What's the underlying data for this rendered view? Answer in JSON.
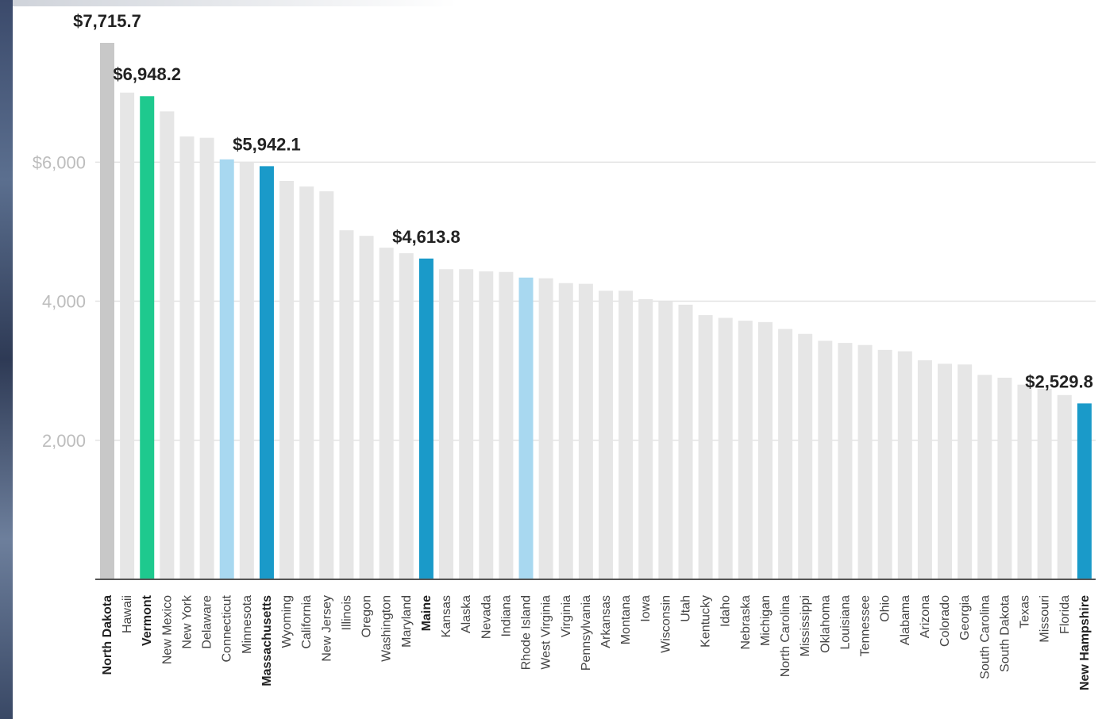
{
  "chart_data": {
    "type": "bar",
    "title": "",
    "xlabel": "",
    "ylabel": "",
    "ylim": [
      0,
      7715.7
    ],
    "y_ticks": [
      {
        "value": 2000,
        "label": "2,000"
      },
      {
        "value": 4000,
        "label": "4,000"
      },
      {
        "value": 6000,
        "label": "$6,000"
      }
    ],
    "grid": true,
    "categories": [
      "North Dakota",
      "Hawaii",
      "Vermont",
      "New Mexico",
      "New York",
      "Delaware",
      "Connecticut",
      "Minnesota",
      "Massachusetts",
      "Wyoming",
      "California",
      "New Jersey",
      "Illinois",
      "Oregon",
      "Washington",
      "Maryland",
      "Maine",
      "Kansas",
      "Alaska",
      "Nevada",
      "Indiana",
      "Rhode Island",
      "West Virginia",
      "Virginia",
      "Pennsylvania",
      "Arkansas",
      "Montana",
      "Iowa",
      "Wisconsin",
      "Utah",
      "Kentucky",
      "Idaho",
      "Nebraska",
      "Michigan",
      "North Carolina",
      "Mississippi",
      "Oklahoma",
      "Louisiana",
      "Tennessee",
      "Ohio",
      "Alabama",
      "Arizona",
      "Colorado",
      "Georgia",
      "South Carolina",
      "South Dakota",
      "Texas",
      "Missouri",
      "Florida",
      "New Hampshire"
    ],
    "values": [
      7715.7,
      7000,
      6948.2,
      6730,
      6370,
      6350,
      6040,
      6000,
      5942.1,
      5730,
      5650,
      5580,
      5020,
      4940,
      4770,
      4690,
      4613.8,
      4460,
      4460,
      4430,
      4420,
      4340,
      4330,
      4260,
      4250,
      4150,
      4150,
      4030,
      4000,
      3950,
      3800,
      3760,
      3720,
      3700,
      3600,
      3530,
      3430,
      3400,
      3370,
      3300,
      3280,
      3150,
      3100,
      3090,
      2940,
      2900,
      2800,
      2740,
      2650,
      2529.8
    ],
    "bar_colors": [
      "#c8c8c8",
      "#e6e6e6",
      "#1ec98e",
      "#e6e6e6",
      "#e6e6e6",
      "#e6e6e6",
      "#a8d8f0",
      "#e6e6e6",
      "#1a9ac9",
      "#e6e6e6",
      "#e6e6e6",
      "#e6e6e6",
      "#e6e6e6",
      "#e6e6e6",
      "#e6e6e6",
      "#e6e6e6",
      "#1a9ac9",
      "#e6e6e6",
      "#e6e6e6",
      "#e6e6e6",
      "#e6e6e6",
      "#a8d8f0",
      "#e6e6e6",
      "#e6e6e6",
      "#e6e6e6",
      "#e6e6e6",
      "#e6e6e6",
      "#e6e6e6",
      "#e6e6e6",
      "#e6e6e6",
      "#e6e6e6",
      "#e6e6e6",
      "#e6e6e6",
      "#e6e6e6",
      "#e6e6e6",
      "#e6e6e6",
      "#e6e6e6",
      "#e6e6e6",
      "#e6e6e6",
      "#e6e6e6",
      "#e6e6e6",
      "#e6e6e6",
      "#e6e6e6",
      "#e6e6e6",
      "#e6e6e6",
      "#e6e6e6",
      "#e6e6e6",
      "#e6e6e6",
      "#e6e6e6",
      "#1a9ac9"
    ],
    "bold_categories": [
      "North Dakota",
      "Vermont",
      "Massachusetts",
      "Maine",
      "New Hampshire"
    ],
    "data_labels": [
      {
        "category": "North Dakota",
        "text": "$7,715.7"
      },
      {
        "category": "Vermont",
        "text": "$6,948.2"
      },
      {
        "category": "Massachusetts",
        "text": "$5,942.1"
      },
      {
        "category": "Maine",
        "text": "$4,613.8"
      },
      {
        "category": "New Hampshire",
        "text": "$2,529.8"
      }
    ]
  }
}
